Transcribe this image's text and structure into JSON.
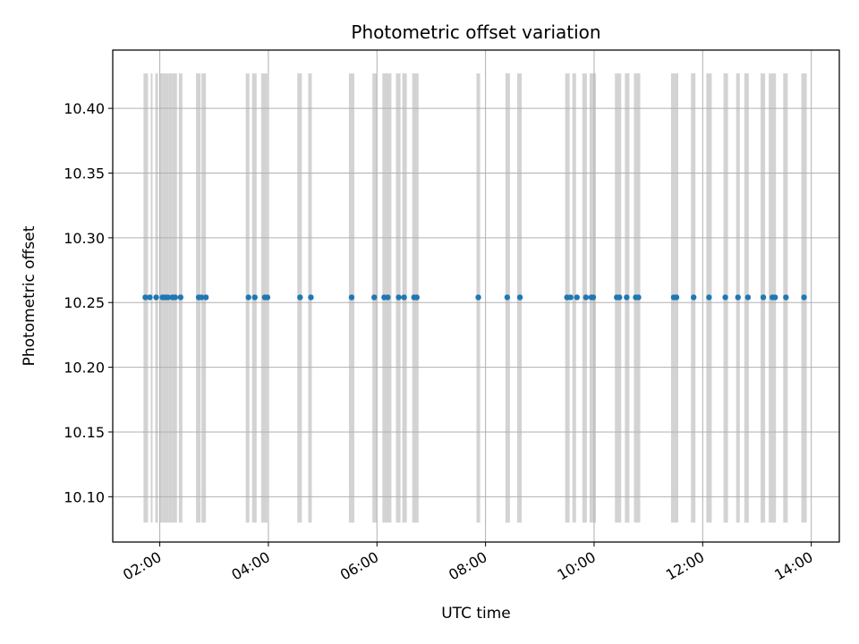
{
  "chart_data": {
    "type": "scatter",
    "title": "Photometric offset variation",
    "xlabel": "UTC time",
    "ylabel": "Photometric offset",
    "x_ticks": [
      "02:00",
      "04:00",
      "06:00",
      "08:00",
      "10:00",
      "12:00",
      "14:00"
    ],
    "y_ticks": [
      "10.10",
      "10.15",
      "10.20",
      "10.25",
      "10.30",
      "10.35",
      "10.40"
    ],
    "xlim": [
      "01:08",
      "14:31"
    ],
    "ylim": [
      10.065,
      10.445
    ],
    "grid": true,
    "marker_color": "#1f77b4",
    "span_color": "#d3d3d3",
    "span_y_range": [
      10.08,
      10.427
    ],
    "series": [
      {
        "values_y": 10.254,
        "x": [
          "01:44",
          "01:49",
          "01:56",
          "02:03",
          "02:06",
          "02:09",
          "02:14",
          "02:17",
          "02:23",
          "02:43",
          "02:46",
          "02:51",
          "03:38",
          "03:45",
          "03:56",
          "03:59",
          "04:35",
          "04:47",
          "05:32",
          "05:57",
          "06:08",
          "06:12",
          "06:24",
          "06:30",
          "06:41",
          "06:44",
          "07:52",
          "08:24",
          "08:38",
          "09:30",
          "09:34",
          "09:41",
          "09:51",
          "09:57",
          "09:59",
          "10:25",
          "10:28",
          "10:36",
          "10:46",
          "10:49",
          "11:28",
          "11:31",
          "11:50",
          "12:07",
          "12:25",
          "12:39",
          "12:50",
          "13:07",
          "13:17",
          "13:20",
          "13:32",
          "13:52"
        ]
      }
    ],
    "spans": [
      [
        "01:42",
        "01:47"
      ],
      [
        "01:50",
        "01:52"
      ],
      [
        "01:55",
        "01:58"
      ],
      [
        "02:00",
        "02:04"
      ],
      [
        "02:04",
        "02:10"
      ],
      [
        "02:10",
        "02:14"
      ],
      [
        "02:14",
        "02:19"
      ],
      [
        "02:21",
        "02:25"
      ],
      [
        "02:40",
        "02:45"
      ],
      [
        "02:46",
        "02:51"
      ],
      [
        "03:35",
        "03:39"
      ],
      [
        "03:42",
        "03:47"
      ],
      [
        "03:52",
        "03:59"
      ],
      [
        "04:32",
        "04:37"
      ],
      [
        "04:44",
        "04:48"
      ],
      [
        "05:29",
        "05:35"
      ],
      [
        "05:55",
        "06:00"
      ],
      [
        "06:06",
        "06:16"
      ],
      [
        "06:21",
        "06:26"
      ],
      [
        "06:28",
        "06:33"
      ],
      [
        "06:39",
        "06:46"
      ],
      [
        "07:50",
        "07:54"
      ],
      [
        "08:22",
        "08:27"
      ],
      [
        "08:35",
        "08:40"
      ],
      [
        "09:28",
        "09:33"
      ],
      [
        "09:36",
        "09:40"
      ],
      [
        "09:47",
        "09:52"
      ],
      [
        "09:55",
        "10:02"
      ],
      [
        "10:23",
        "10:30"
      ],
      [
        "10:34",
        "10:39"
      ],
      [
        "10:44",
        "10:51"
      ],
      [
        "11:25",
        "11:33"
      ],
      [
        "11:47",
        "11:52"
      ],
      [
        "12:04",
        "12:10"
      ],
      [
        "12:23",
        "12:28"
      ],
      [
        "12:37",
        "12:41"
      ],
      [
        "12:46",
        "12:51"
      ],
      [
        "13:04",
        "13:09"
      ],
      [
        "13:13",
        "13:21"
      ],
      [
        "13:29",
        "13:34"
      ],
      [
        "13:49",
        "13:55"
      ]
    ]
  }
}
